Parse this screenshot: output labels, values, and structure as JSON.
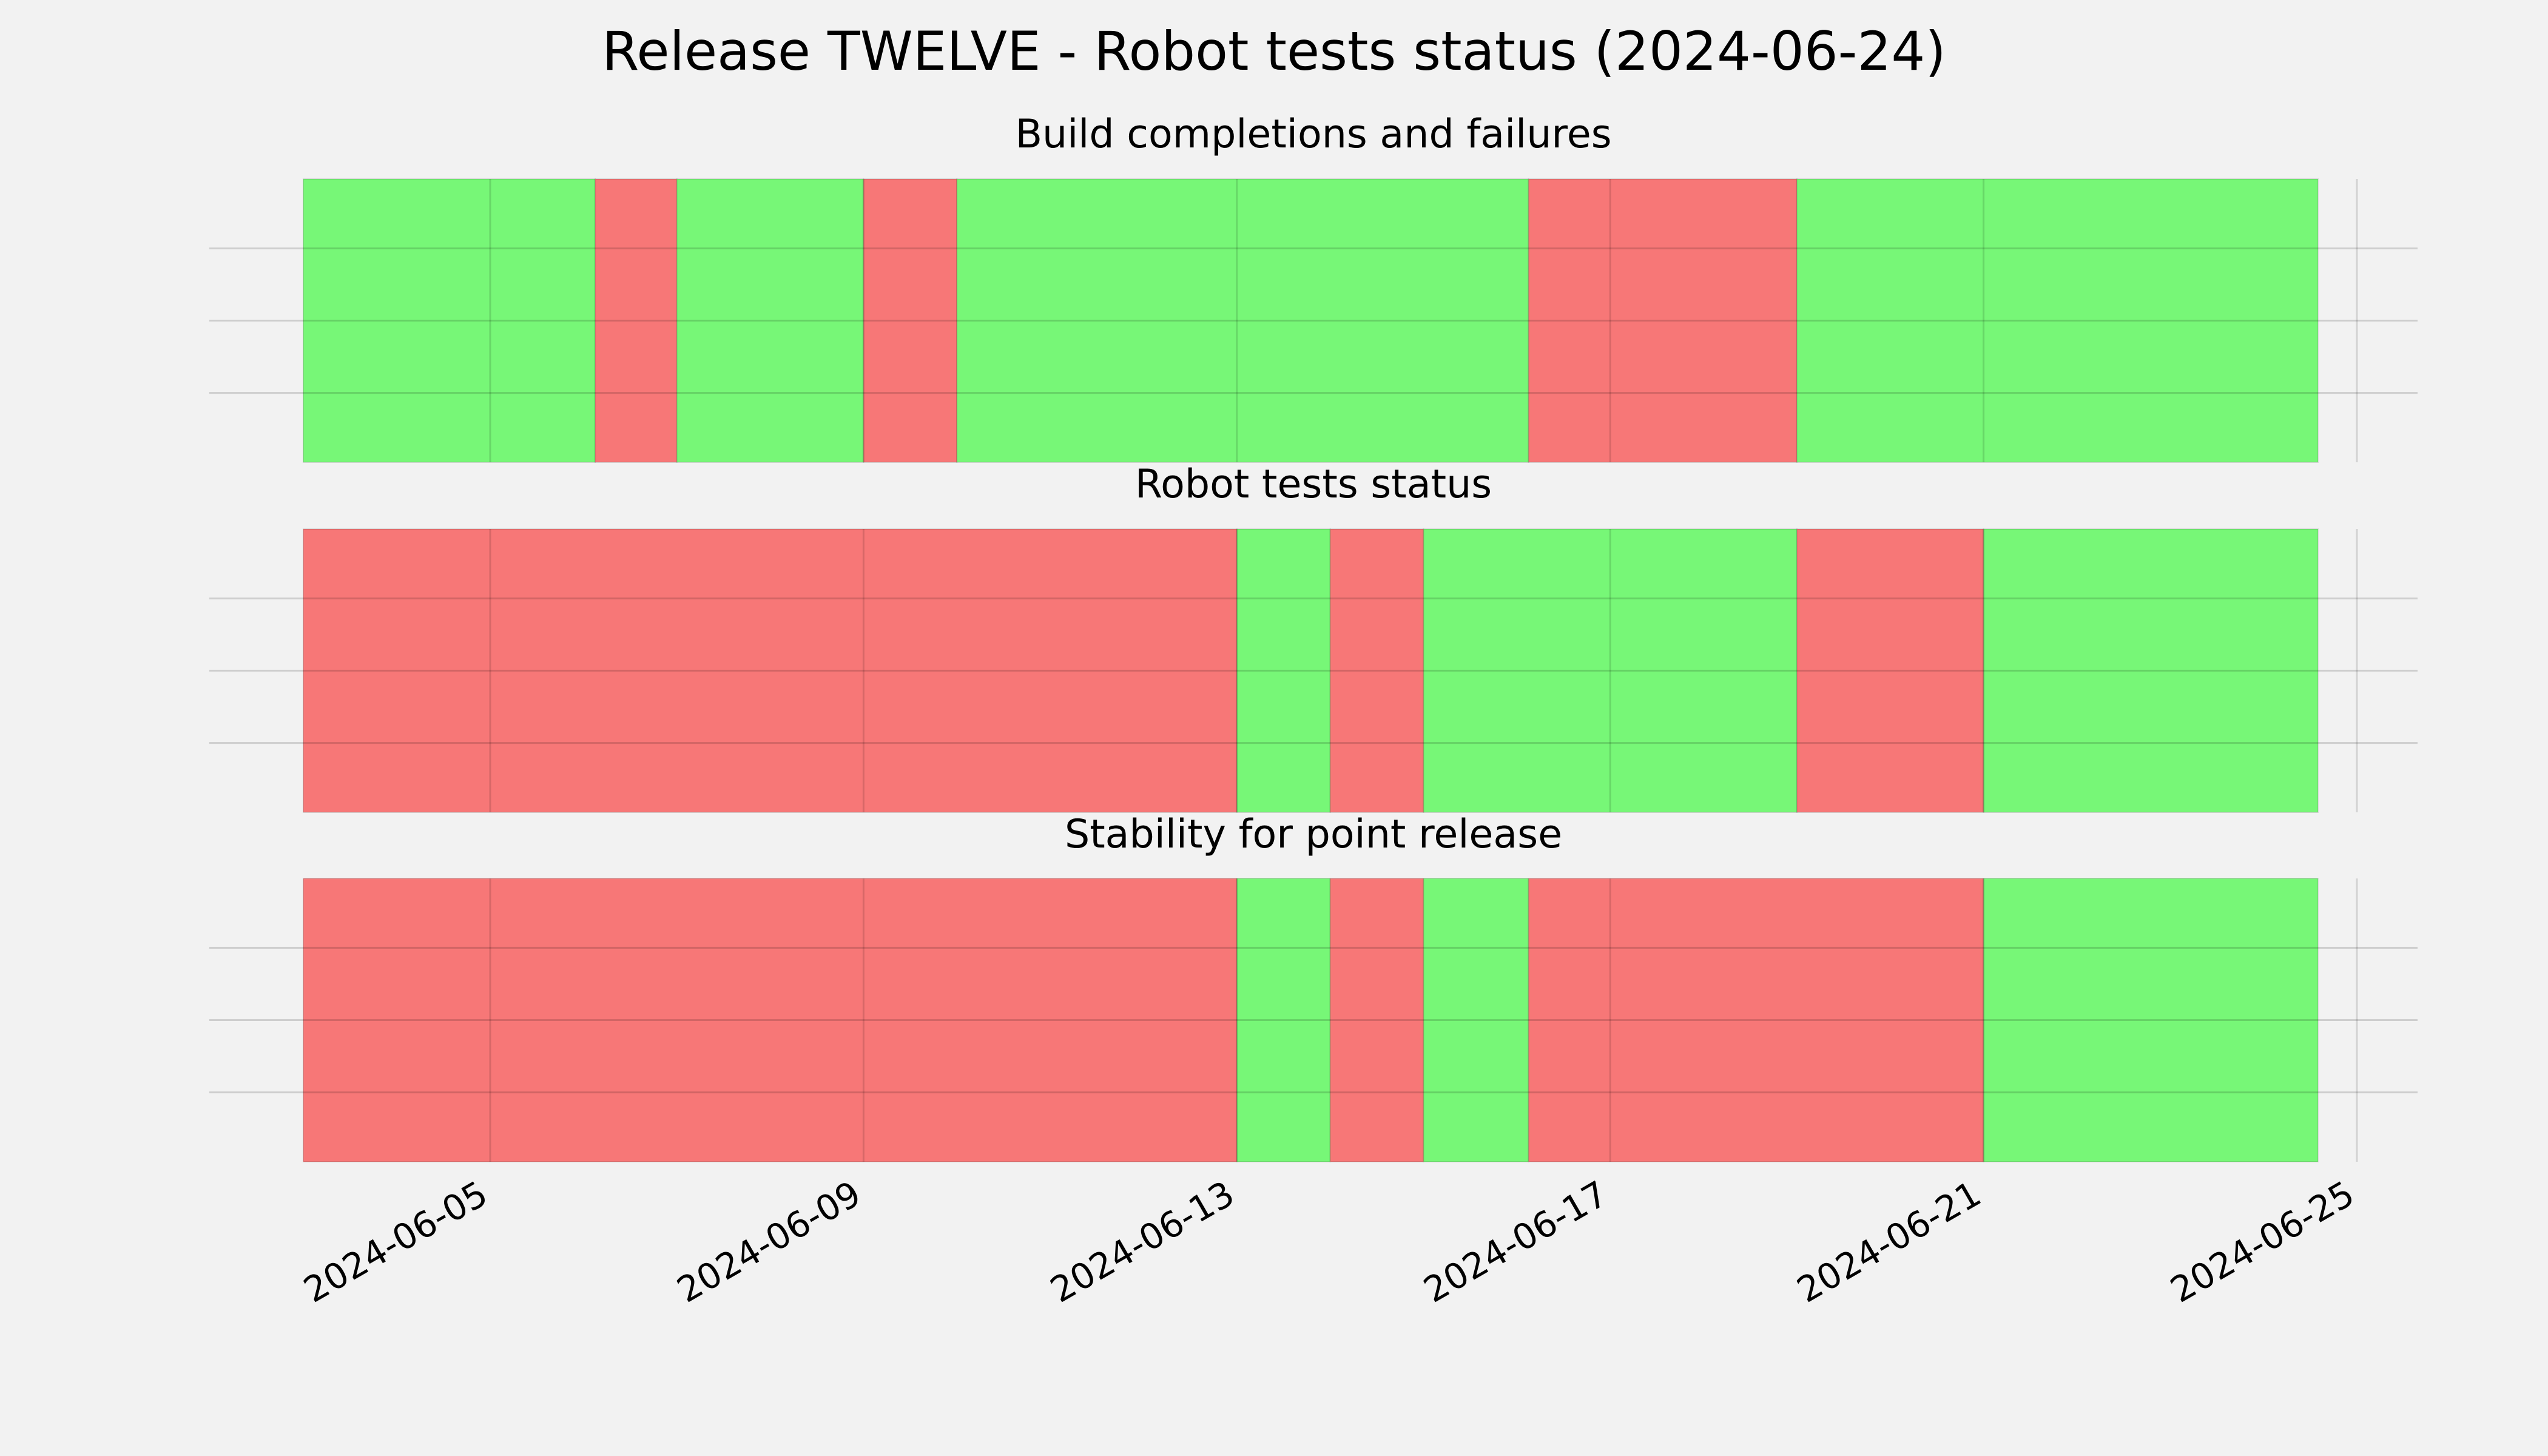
{
  "chart_data": {
    "type": "timeline",
    "title": "Release TWELVE - Robot tests status (2024-06-24)",
    "xlim": [
      "2024-06-03",
      "2024-06-25"
    ],
    "x_ticks": [
      "2024-06-05",
      "2024-06-09",
      "2024-06-13",
      "2024-06-17",
      "2024-06-21",
      "2024-06-25"
    ],
    "grid": true,
    "status_colors": {
      "pass": "#77f777",
      "fail": "#f77777"
    },
    "panels": [
      {
        "title": "Build completions and failures",
        "segments": [
          {
            "start": "2024-06-03",
            "end": "2024-06-06 03:00",
            "status": "pass"
          },
          {
            "start": "2024-06-06 03:00",
            "end": "2024-06-07 00:00",
            "status": "fail"
          },
          {
            "start": "2024-06-07 00:00",
            "end": "2024-06-09 00:00",
            "status": "pass"
          },
          {
            "start": "2024-06-09 00:00",
            "end": "2024-06-10 00:00",
            "status": "fail"
          },
          {
            "start": "2024-06-10 00:00",
            "end": "2024-06-16 03:00",
            "status": "pass"
          },
          {
            "start": "2024-06-16 03:00",
            "end": "2024-06-19 00:00",
            "status": "fail"
          },
          {
            "start": "2024-06-19 00:00",
            "end": "2024-06-24 14:00",
            "status": "pass"
          }
        ]
      },
      {
        "title": "Robot tests status",
        "segments": [
          {
            "start": "2024-06-03",
            "end": "2024-06-13 00:00",
            "status": "fail"
          },
          {
            "start": "2024-06-13 00:00",
            "end": "2024-06-14 00:00",
            "status": "pass"
          },
          {
            "start": "2024-06-14 00:00",
            "end": "2024-06-15 00:00",
            "status": "fail"
          },
          {
            "start": "2024-06-15 00:00",
            "end": "2024-06-19 00:00",
            "status": "pass"
          },
          {
            "start": "2024-06-19 00:00",
            "end": "2024-06-21 00:00",
            "status": "fail"
          },
          {
            "start": "2024-06-21 00:00",
            "end": "2024-06-24 14:00",
            "status": "pass"
          }
        ]
      },
      {
        "title": "Stability for point release",
        "segments": [
          {
            "start": "2024-06-03",
            "end": "2024-06-13 00:00",
            "status": "fail"
          },
          {
            "start": "2024-06-13 00:00",
            "end": "2024-06-14 00:00",
            "status": "pass"
          },
          {
            "start": "2024-06-14 00:00",
            "end": "2024-06-15 00:00",
            "status": "fail"
          },
          {
            "start": "2024-06-15 00:00",
            "end": "2024-06-16 03:00",
            "status": "pass"
          },
          {
            "start": "2024-06-16 03:00",
            "end": "2024-06-21 00:00",
            "status": "fail"
          },
          {
            "start": "2024-06-21 00:00",
            "end": "2024-06-24 14:00",
            "status": "pass"
          }
        ]
      }
    ]
  }
}
